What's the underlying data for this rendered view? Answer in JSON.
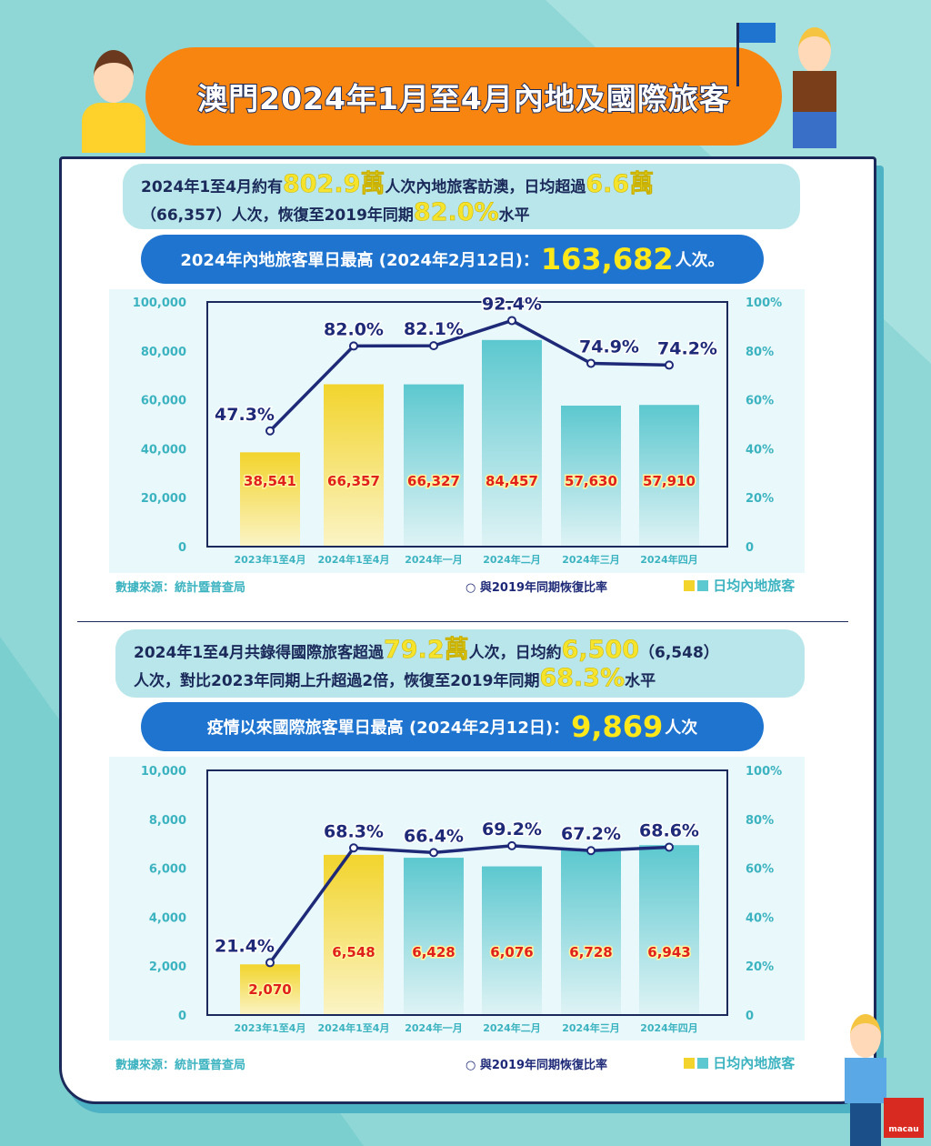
{
  "title": "澳門2024年1月至4月內地及國際旅客",
  "section1": {
    "line1_a": "2024年1至4月約有",
    "line1_hl1": "802.9萬",
    "line1_b": "人次內地旅客訪澳，日均超過",
    "line1_hl2": "6.6萬",
    "line2_a": "（66,357）人次，恢復至2019年同期",
    "line2_hl": "82.0%",
    "line2_b": "水平",
    "pill_a": "2024年內地旅客單日最高 (2024年2月12日)：",
    "pill_big": "163,682",
    "pill_b": "人次。"
  },
  "section2": {
    "line1_a": "2024年1至4月共錄得國際旅客超過",
    "line1_hl1": "79.2萬",
    "line1_b": "人次，日均約",
    "line1_hl2": "6,500",
    "line1_c": "（6,548）",
    "line2_a": "人次，對比2023年同期上升超過2倍，恢復至2019年同期",
    "line2_hl": "68.3%",
    "line2_b": "水平",
    "pill_a": "疫情以來國際旅客單日最高 (2024年2月12日)：",
    "pill_big": "9,869",
    "pill_b": "人次"
  },
  "legend": {
    "source": "數據來源：統計暨普查局",
    "line": "與2019年同期恢復比率",
    "bars": "日均內地旅客"
  },
  "colors": {
    "yellow": "#f2d42c",
    "teal": "#5cc8cf",
    "line": "#1e2a78",
    "label_red": "#e0201c",
    "orange": "#f7850f",
    "blue": "#1f74cf"
  },
  "chart_data": [
    {
      "type": "bar+line",
      "categories": [
        "2023年1至4月",
        "2024年1至4月",
        "2024年一月",
        "2024年二月",
        "2024年三月",
        "2024年四月"
      ],
      "bar_values": [
        38541,
        66357,
        66327,
        84457,
        57630,
        57910
      ],
      "bar_labels": [
        "38,541",
        "66,357",
        "66,327",
        "84,457",
        "57,630",
        "57,910"
      ],
      "bar_colors": [
        "yellow",
        "yellow",
        "teal",
        "teal",
        "teal",
        "teal"
      ],
      "line_values": [
        47.3,
        82.0,
        82.1,
        92.4,
        74.9,
        74.2
      ],
      "line_labels": [
        "47.3%",
        "82.0%",
        "82.1%",
        "92.4%",
        "74.9%",
        "74.2%"
      ],
      "ylim": [
        0,
        100000
      ],
      "y_ticks": [
        "0",
        "20,000",
        "40,000",
        "60,000",
        "80,000",
        "100,000"
      ],
      "y2lim": [
        0,
        100
      ],
      "y2_ticks": [
        "0",
        "20%",
        "40%",
        "60%",
        "80%",
        "100%"
      ]
    },
    {
      "type": "bar+line",
      "categories": [
        "2023年1至4月",
        "2024年1至4月",
        "2024年一月",
        "2024年二月",
        "2024年三月",
        "2024年四月"
      ],
      "bar_values": [
        2070,
        6548,
        6428,
        6076,
        6728,
        6943
      ],
      "bar_labels": [
        "2,070",
        "6,548",
        "6,428",
        "6,076",
        "6,728",
        "6,943"
      ],
      "bar_colors": [
        "yellow",
        "yellow",
        "teal",
        "teal",
        "teal",
        "teal"
      ],
      "line_values": [
        21.4,
        68.3,
        66.4,
        69.2,
        67.2,
        68.6
      ],
      "line_labels": [
        "21.4%",
        "68.3%",
        "66.4%",
        "69.2%",
        "67.2%",
        "68.6%"
      ],
      "ylim": [
        0,
        10000
      ],
      "y_ticks": [
        "0",
        "2,000",
        "4,000",
        "6,000",
        "8,000",
        "10,000"
      ],
      "y2lim": [
        0,
        100
      ],
      "y2_ticks": [
        "0",
        "20%",
        "40%",
        "60%",
        "80%",
        "100%"
      ]
    }
  ],
  "logo": "macau"
}
